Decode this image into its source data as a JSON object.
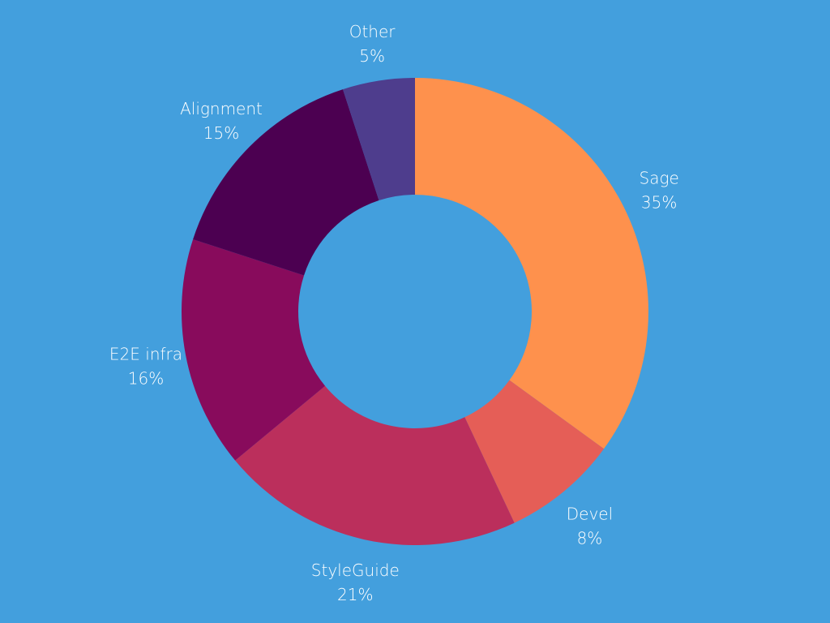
{
  "colors": {
    "background": "#439fdd",
    "label_text": "#ffffff"
  },
  "chart_data": {
    "type": "pie",
    "variant": "donut",
    "title": "",
    "legend": "none",
    "slices": [
      {
        "label": "Sage",
        "value": 35,
        "value_label": "35%",
        "color": "#fe914d"
      },
      {
        "label": "Devel",
        "value": 8,
        "value_label": "8%",
        "color": "#e55e57"
      },
      {
        "label": "StyleGuide",
        "value": 21,
        "value_label": "21%",
        "color": "#bb2f5c"
      },
      {
        "label": "E2E infra",
        "value": 16,
        "value_label": "16%",
        "color": "#880b5c"
      },
      {
        "label": "Alignment",
        "value": 15,
        "value_label": "15%",
        "color": "#4c0051"
      },
      {
        "label": "Other",
        "value": 5,
        "value_label": "5%",
        "color": "#4e3d8d"
      }
    ]
  }
}
